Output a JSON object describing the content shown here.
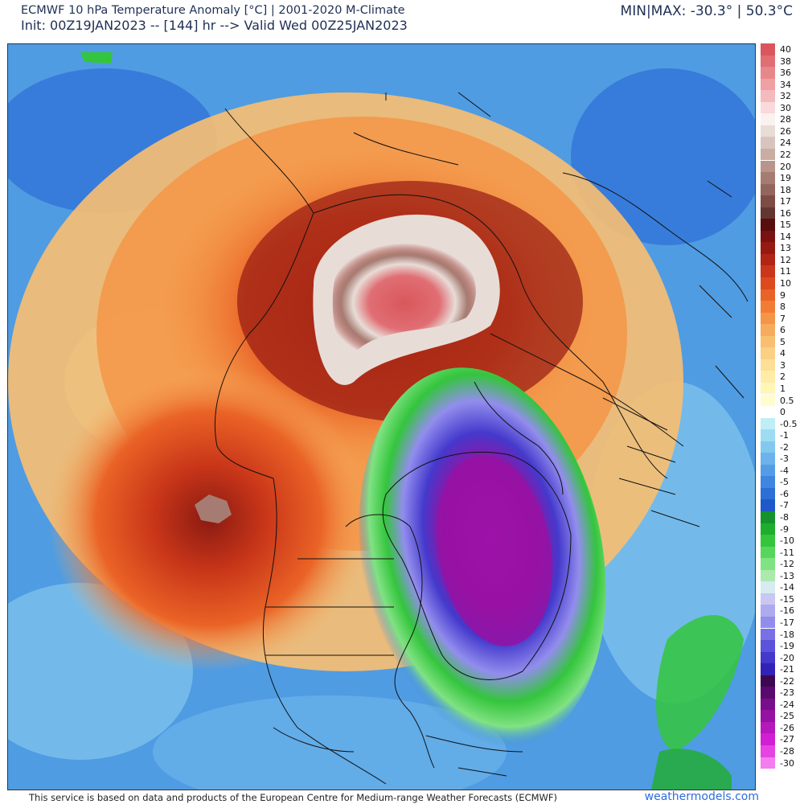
{
  "header": {
    "title_line1": "ECMWF 10 hPa Temperature Anomaly [°C] | 2001-2020 M-Climate",
    "title_line2": "Init: 00Z19JAN2023 -- [144] hr --> Valid Wed 00Z25JAN2023",
    "minmax": "MIN|MAX: -30.3° | 50.3°C"
  },
  "footer": {
    "disclaimer": "This service is based on data and products of the European Centre for Medium-range Weather Forecasts (ECMWF)",
    "brand": "weathermodels.com"
  },
  "legend": {
    "items": [
      {
        "label": "40",
        "color": "#d9575c"
      },
      {
        "label": "38",
        "color": "#e06e73"
      },
      {
        "label": "36",
        "color": "#e8878b"
      },
      {
        "label": "34",
        "color": "#eea0a3"
      },
      {
        "label": "32",
        "color": "#f4babd"
      },
      {
        "label": "30",
        "color": "#fad9da"
      },
      {
        "label": "28",
        "color": "#fbf2ef"
      },
      {
        "label": "26",
        "color": "#e8dcd7"
      },
      {
        "label": "24",
        "color": "#d8c4bc"
      },
      {
        "label": "22",
        "color": "#c9aca2"
      },
      {
        "label": "20",
        "color": "#b8948a"
      },
      {
        "label": "19",
        "color": "#a67c72"
      },
      {
        "label": "18",
        "color": "#94655c"
      },
      {
        "label": "17",
        "color": "#7d4c45"
      },
      {
        "label": "16",
        "color": "#633632"
      },
      {
        "label": "15",
        "color": "#5a0d0d"
      },
      {
        "label": "14",
        "color": "#7a1212"
      },
      {
        "label": "13",
        "color": "#961a12"
      },
      {
        "label": "12",
        "color": "#b12515"
      },
      {
        "label": "11",
        "color": "#c93619"
      },
      {
        "label": "10",
        "color": "#dc4a1e"
      },
      {
        "label": "9",
        "color": "#ea6326"
      },
      {
        "label": "8",
        "color": "#f27c34"
      },
      {
        "label": "7",
        "color": "#f59547"
      },
      {
        "label": "6",
        "color": "#f7ab5c"
      },
      {
        "label": "5",
        "color": "#f9bf70"
      },
      {
        "label": "4",
        "color": "#fbd084"
      },
      {
        "label": "3",
        "color": "#fddf97"
      },
      {
        "label": "2",
        "color": "#ffeca8"
      },
      {
        "label": "1",
        "color": "#fff6b8"
      },
      {
        "label": "0.5",
        "color": "#fffcd0"
      },
      {
        "label": "0",
        "color": "#ffffff"
      },
      {
        "label": "-0.5",
        "color": "#bfeef7"
      },
      {
        "label": "-1",
        "color": "#9fdcf2"
      },
      {
        "label": "-2",
        "color": "#83c8ee"
      },
      {
        "label": "-3",
        "color": "#6bb3ea"
      },
      {
        "label": "-4",
        "color": "#549de6"
      },
      {
        "label": "-5",
        "color": "#3f86e0"
      },
      {
        "label": "-6",
        "color": "#2d6fd6"
      },
      {
        "label": "-7",
        "color": "#1f59c9"
      },
      {
        "label": "-8",
        "color": "#14932c"
      },
      {
        "label": "-9",
        "color": "#1fae2c"
      },
      {
        "label": "-10",
        "color": "#34c53d"
      },
      {
        "label": "-11",
        "color": "#57d65c"
      },
      {
        "label": "-12",
        "color": "#81e283"
      },
      {
        "label": "-13",
        "color": "#ace9ad"
      },
      {
        "label": "-14",
        "color": "#d6ecf0"
      },
      {
        "label": "-15",
        "color": "#c8c8f3"
      },
      {
        "label": "-16",
        "color": "#aeaaf0"
      },
      {
        "label": "-17",
        "color": "#928ded"
      },
      {
        "label": "-18",
        "color": "#7770e6"
      },
      {
        "label": "-19",
        "color": "#5c53dc"
      },
      {
        "label": "-20",
        "color": "#4439cc"
      },
      {
        "label": "-21",
        "color": "#3222b5"
      },
      {
        "label": "-22",
        "color": "#3d0752"
      },
      {
        "label": "-23",
        "color": "#5a0a6e"
      },
      {
        "label": "-24",
        "color": "#790e8a"
      },
      {
        "label": "-25",
        "color": "#9612a3"
      },
      {
        "label": "-26",
        "color": "#b518bd"
      },
      {
        "label": "-27",
        "color": "#d21fd3"
      },
      {
        "label": "-28",
        "color": "#e644e2"
      },
      {
        "label": "-30",
        "color": "#f27cf0"
      }
    ]
  }
}
